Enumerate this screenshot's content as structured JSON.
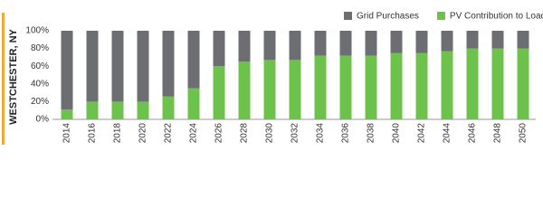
{
  "chart_data": {
    "type": "stacked_bar",
    "y_label": "WESTCHESTER, NY",
    "categories": [
      "2014",
      "2016",
      "2018",
      "2020",
      "2022",
      "2024",
      "2026",
      "2028",
      "2030",
      "2032",
      "2034",
      "2036",
      "2038",
      "2040",
      "2042",
      "2044",
      "2046",
      "2048",
      "2050"
    ],
    "series": [
      {
        "name": "Grid Purchases",
        "color": "#6d6e71",
        "values": [
          89,
          80,
          80,
          80,
          74,
          65,
          40,
          35,
          33,
          33,
          28,
          28,
          28,
          25,
          25,
          23,
          20,
          20,
          20
        ]
      },
      {
        "name": "PV Contribution to Load",
        "color": "#6cc24a",
        "values": [
          11,
          20,
          20,
          20,
          26,
          35,
          60,
          65,
          67,
          67,
          72,
          72,
          72,
          75,
          75,
          77,
          80,
          80,
          80
        ]
      }
    ],
    "stack_order": [
      1,
      0
    ],
    "ylim": [
      0,
      100
    ],
    "yticks": [
      {
        "value": 0,
        "label": "0%"
      },
      {
        "value": 20,
        "label": "20%"
      },
      {
        "value": 40,
        "label": "40%"
      },
      {
        "value": 60,
        "label": "60%"
      },
      {
        "value": 80,
        "label": "80%"
      },
      {
        "value": 100,
        "label": "100%"
      }
    ],
    "legend": "top-right"
  }
}
